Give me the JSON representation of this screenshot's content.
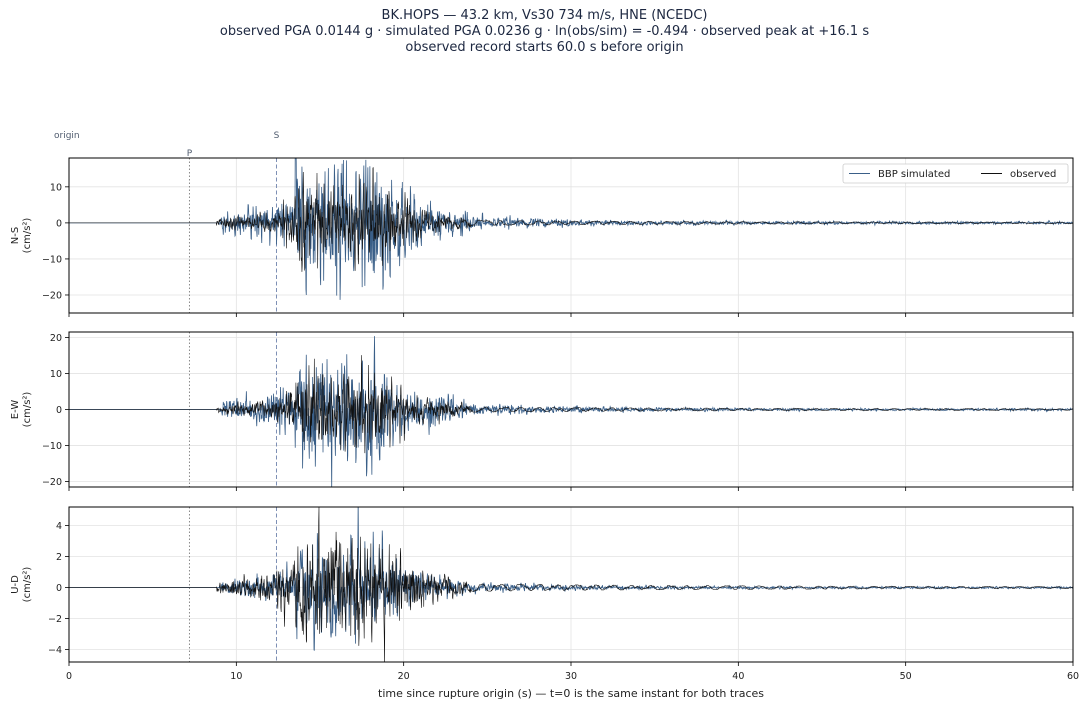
{
  "header": {
    "line1": "BK.HOPS  —  43.2 km, Vs30 734 m/s, HNE (NCEDC)",
    "line2": "observed PGA 0.0144 g   ·   simulated PGA 0.0236 g   ·   ln(obs/sim) = -0.494   ·   observed peak at +16.1 s",
    "line3": "observed record starts 60.0 s before origin"
  },
  "chart_data": {
    "type": "line",
    "xlabel": "time since rupture origin (s)   —   t=0 is the same instant for both traces",
    "xlim": [
      0,
      60
    ],
    "xticks": [
      0,
      10,
      20,
      30,
      40,
      50,
      60
    ],
    "grid": true,
    "legend": {
      "placement": "top-right",
      "entries": [
        "BBP simulated",
        "observed"
      ]
    },
    "markers": [
      {
        "label": "origin",
        "t": 0,
        "style": "none"
      },
      {
        "label": "P",
        "t": 7.2,
        "style": "dotted"
      },
      {
        "label": "S",
        "t": 12.4,
        "style": "dashed"
      }
    ],
    "colors": {
      "simulated": "#3a5f88",
      "observed": "#111111",
      "p_line": "#8a8a8a",
      "s_line": "#7d8fb5"
    },
    "panels": [
      {
        "component": "N-S",
        "unit": "(cm/s²)",
        "ylim": [
          -25,
          18
        ],
        "yticks": [
          10,
          0,
          -10,
          -20
        ],
        "observed_peak_abs": 13.5,
        "simulated_peak_abs": 23.0,
        "simulated_min": -23.0
      },
      {
        "component": "E-W",
        "unit": "(cm/s²)",
        "ylim": [
          -21.5,
          21.5
        ],
        "yticks": [
          20,
          10,
          0,
          -10,
          -20
        ],
        "observed_peak_abs": 14.1,
        "simulated_peak_abs": 19.5,
        "simulated_min": -19.5
      },
      {
        "component": "U-D",
        "unit": "(cm/s²)",
        "ylim": [
          -4.8,
          5.2
        ],
        "yticks": [
          4,
          2,
          0,
          -2,
          -4
        ],
        "observed_peak_abs": 4.7,
        "simulated_peak_abs": 3.6,
        "simulated_min": -3.6
      }
    ],
    "series": [
      {
        "name": "BBP simulated"
      },
      {
        "name": "observed"
      }
    ]
  }
}
